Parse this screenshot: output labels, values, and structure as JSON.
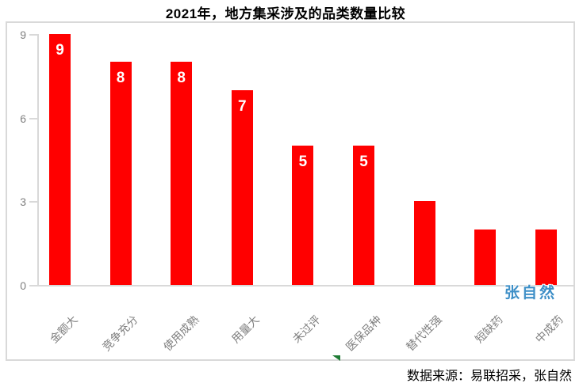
{
  "title": "2021年，地方集采涉及的品类数量比较",
  "chart_data": {
    "type": "bar",
    "title": "2021年，地方集采涉及的品类数量比较",
    "categories": [
      "金额大",
      "竞争充分",
      "使用成熟",
      "用量大",
      "未过评",
      "医保品种",
      "替代性强",
      "短缺药",
      "中成药"
    ],
    "values": [
      9,
      8,
      8,
      7,
      5,
      5,
      3,
      2,
      2
    ],
    "data_labels": [
      "9",
      "8",
      "8",
      "7",
      "5",
      "5",
      "",
      "",
      ""
    ],
    "xlabel": "",
    "ylabel": "",
    "ylim": [
      0,
      9
    ],
    "yticks": [
      0,
      3,
      6,
      9
    ],
    "grid": false,
    "legend": false,
    "bar_color": "#FF0000",
    "data_label_color": "#FFFFFF",
    "axis_color": "#D9D9D9",
    "tick_label_color": "#808080",
    "category_label_color": "#808080"
  },
  "watermark": {
    "text": "张自然",
    "color": "#3E8FC7"
  },
  "source_note": "数据来源：易联招采，张自然",
  "decorations": {
    "green_marker": "autofill-marker",
    "green_marker_color": "#1E7B34"
  }
}
